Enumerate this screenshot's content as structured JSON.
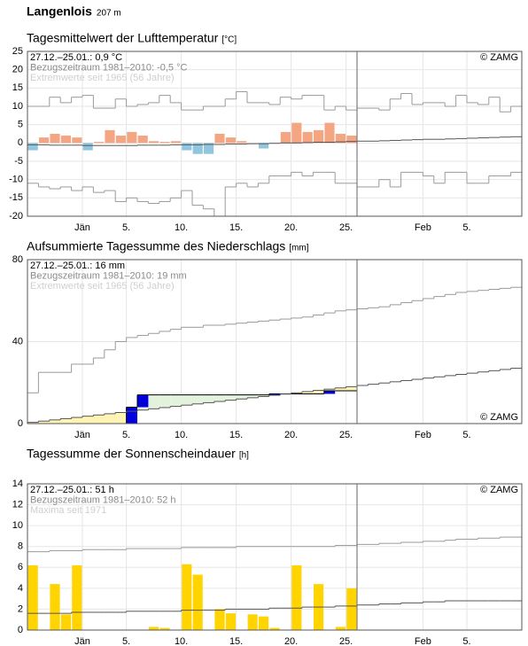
{
  "header": {
    "title": "Langenlois",
    "subtitle": "207 m"
  },
  "chart_data": [
    {
      "type": "bar",
      "title": "Tagesmittelwert der Lufttemperatur",
      "unit": "[°C]",
      "credit": "© ZAMG",
      "credit_corner": "top right",
      "grid": true,
      "categories": [
        null,
        null,
        null,
        null,
        null,
        "Jän",
        null,
        null,
        null,
        "5.",
        null,
        null,
        null,
        null,
        "10.",
        null,
        null,
        null,
        null,
        "15.",
        null,
        null,
        null,
        null,
        "20.",
        null,
        null,
        null,
        null,
        "25.",
        null,
        null,
        null,
        null,
        null,
        null,
        "Feb",
        null,
        null,
        null,
        "5.",
        null,
        null,
        null,
        null
      ],
      "ylim": [
        -20,
        25
      ],
      "yticks": [
        -20,
        -15,
        -10,
        -5,
        0,
        5,
        10,
        15,
        20,
        25
      ],
      "series": [
        {
          "name": "27.12.–25.01.: 0,9 °C",
          "style": "bar",
          "color": "#f4a582",
          "negative_color": "#92c5de",
          "values": [
            -2,
            1.5,
            2.5,
            2,
            1.5,
            -2,
            0.3,
            3.5,
            2,
            3,
            2,
            0.5,
            0.3,
            0.5,
            -2,
            -3,
            -3,
            2.5,
            1.5,
            0.5,
            0,
            -1.5,
            0,
            3,
            5.5,
            3,
            3.5,
            5.5,
            2.5,
            2,
            null,
            null,
            null,
            null,
            null,
            null,
            null,
            null,
            null,
            null,
            null,
            null,
            null,
            null,
            null
          ]
        },
        {
          "name": "Bezugszeitraum 1981–2010: -0,5 °C",
          "style": "step",
          "color": "#555555",
          "values": [
            -0.5,
            -0.5,
            -0.6,
            -0.6,
            -0.6,
            -0.7,
            -0.7,
            -0.7,
            -0.7,
            -0.7,
            -0.6,
            -0.6,
            -0.6,
            -0.5,
            -0.5,
            -0.5,
            -0.4,
            -0.4,
            -0.3,
            -0.3,
            -0.2,
            -0.2,
            -0.1,
            0,
            0,
            0.1,
            0.2,
            0.2,
            0.3,
            0.4,
            0.5,
            0.5,
            0.6,
            0.7,
            0.8,
            0.9,
            1,
            1,
            1.1,
            1.2,
            1.3,
            1.4,
            1.5,
            1.6,
            1.7
          ]
        },
        {
          "name": "Extremwerte seit 1965 (56 Jahre)",
          "style": "step",
          "color": "#9a9a9a",
          "values": [
            10,
            10,
            12.5,
            11,
            12.5,
            13,
            9.5,
            9.5,
            12,
            10,
            10.5,
            11,
            13,
            11,
            9,
            9,
            10,
            10,
            12,
            14,
            11,
            11,
            10.5,
            12.5,
            12,
            13,
            13,
            9,
            10,
            9,
            9.5,
            9.5,
            9,
            12,
            13.5,
            10.5,
            11,
            11,
            10,
            13,
            11,
            10.5,
            12.5,
            8.5,
            10
          ]
        },
        {
          "style": "step",
          "color": "#9a9a9a",
          "values": [
            -11,
            -12,
            -12.5,
            -12,
            -13,
            -12,
            -13.5,
            -13,
            -16,
            -15,
            -16,
            -16.5,
            -16,
            -15,
            -13,
            -17,
            -18,
            -20,
            -12,
            -11,
            -12,
            -11,
            -9,
            -9,
            -8,
            -9,
            -8,
            -8,
            -11,
            -11,
            -12,
            -12,
            -10,
            -12,
            -8,
            -8,
            -9,
            -11,
            -8,
            -8,
            -11,
            -11,
            -9,
            -9,
            -8
          ]
        }
      ]
    },
    {
      "type": "line",
      "title": "Aufsummierte Tagessumme des Niederschlags",
      "unit": "[mm]",
      "credit": "© ZAMG",
      "credit_corner": "bottom right",
      "grid": true,
      "fill_colors": {
        "below": "#fff4b3",
        "above": "#e2f2dc"
      },
      "increment_color": "#0000dd",
      "categories": [
        null,
        null,
        null,
        null,
        null,
        "Jän",
        null,
        null,
        null,
        "5.",
        null,
        null,
        null,
        null,
        "10.",
        null,
        null,
        null,
        null,
        "15.",
        null,
        null,
        null,
        null,
        "20.",
        null,
        null,
        null,
        null,
        "25.",
        null,
        null,
        null,
        null,
        null,
        null,
        "Feb",
        null,
        null,
        null,
        "5.",
        null,
        null,
        null,
        null
      ],
      "ylim": [
        0,
        80
      ],
      "yticks": [
        0,
        40,
        80
      ],
      "series": [
        {
          "name": "27.12.–25.01.: 16 mm",
          "style": "step",
          "color": "#000000",
          "values": [
            0,
            0,
            0,
            0,
            0,
            0,
            0,
            0,
            0,
            8,
            14,
            14,
            14,
            14,
            14,
            14,
            14,
            14,
            14,
            14,
            14,
            14,
            14.5,
            14.5,
            14.5,
            14.5,
            14.5,
            16,
            16,
            16,
            null,
            null,
            null,
            null,
            null,
            null,
            null,
            null,
            null,
            null,
            null,
            null,
            null,
            null,
            null
          ]
        },
        {
          "name": "Bezugszeitraum 1981–2010: 19 mm",
          "style": "step",
          "color": "#555555",
          "values": [
            0.6,
            1.2,
            1.8,
            2.4,
            3,
            3.6,
            4.2,
            4.8,
            5.4,
            6,
            6.6,
            7.2,
            7.8,
            8.4,
            9,
            9.6,
            10.2,
            10.8,
            11.4,
            12,
            12.6,
            13.2,
            13.8,
            14.4,
            15,
            15.6,
            16.2,
            16.8,
            17.4,
            18,
            18.6,
            19.2,
            19.8,
            20.4,
            21,
            21.6,
            22.2,
            22.8,
            23.4,
            24,
            24.6,
            25.2,
            25.8,
            26.4,
            27
          ]
        },
        {
          "name": "Extremwerte seit 1965 (56 Jahre)",
          "style": "step",
          "color": "#9a9a9a",
          "values": [
            15,
            25,
            25,
            25,
            29,
            29,
            32,
            36,
            40,
            42,
            43,
            44,
            45,
            46,
            47,
            47,
            48,
            48,
            48.5,
            49,
            49.5,
            50,
            50.5,
            51,
            51.5,
            52,
            53,
            54,
            55,
            55.5,
            56,
            56.5,
            57,
            58,
            59,
            60,
            61,
            62,
            63,
            64,
            64.5,
            65,
            65.5,
            66,
            66.5
          ]
        }
      ]
    },
    {
      "type": "bar",
      "title": "Tagessumme der Sonnenscheindauer",
      "unit": "[h]",
      "credit": "© ZAMG",
      "credit_corner": "top right",
      "grid": true,
      "categories": [
        null,
        null,
        null,
        null,
        null,
        "Jän",
        null,
        null,
        null,
        "5.",
        null,
        null,
        null,
        null,
        "10.",
        null,
        null,
        null,
        null,
        "15.",
        null,
        null,
        null,
        null,
        "20.",
        null,
        null,
        null,
        null,
        "25.",
        null,
        null,
        null,
        null,
        null,
        null,
        "Feb",
        null,
        null,
        null,
        "5.",
        null,
        null,
        null,
        null
      ],
      "ylim": [
        0,
        14
      ],
      "yticks": [
        0,
        2,
        4,
        6,
        8,
        10,
        12,
        14
      ],
      "series": [
        {
          "name": "27.12.–25.01.: 51 h",
          "style": "bar",
          "color": "#ffd400",
          "values": [
            6.2,
            0,
            4.4,
            1.5,
            6.2,
            0,
            0,
            0,
            0,
            0,
            0,
            0.3,
            0.2,
            0,
            6.3,
            5.3,
            0,
            2,
            1.6,
            0,
            1.5,
            1.3,
            0.2,
            0,
            6.2,
            0,
            4.4,
            0,
            0.3,
            4,
            null,
            null,
            null,
            null,
            null,
            null,
            null,
            null,
            null,
            null,
            null,
            null,
            null,
            null,
            null
          ]
        },
        {
          "name": "Bezugszeitraum 1981–2010: 52 h",
          "style": "step",
          "color": "#555555",
          "values": [
            1.6,
            1.6,
            1.6,
            1.6,
            1.7,
            1.7,
            1.7,
            1.7,
            1.7,
            1.8,
            1.8,
            1.8,
            1.8,
            1.8,
            1.9,
            1.9,
            1.9,
            1.9,
            2,
            2,
            2,
            2,
            2.1,
            2.1,
            2.1,
            2.2,
            2.2,
            2.2,
            2.3,
            2.3,
            2.4,
            2.4,
            2.5,
            2.5,
            2.6,
            2.6,
            2.7,
            2.7,
            2.8,
            2.8,
            2.8,
            2.8,
            2.8,
            2.8,
            2.8
          ]
        },
        {
          "name": "Maxima seit 1971",
          "style": "step",
          "color": "#9a9a9a",
          "values": [
            7.5,
            7.5,
            7.6,
            7.6,
            7.6,
            7.7,
            7.7,
            7.7,
            7.7,
            7.8,
            7.8,
            7.8,
            7.8,
            7.8,
            7.9,
            7.9,
            7.9,
            7.9,
            7.9,
            8,
            8,
            8,
            8,
            8,
            8,
            8,
            8,
            8,
            8.1,
            8.1,
            8.2,
            8.2,
            8.3,
            8.3,
            8.4,
            8.4,
            8.5,
            8.5,
            8.6,
            8.7,
            8.7,
            8.8,
            8.8,
            8.9,
            8.9
          ]
        }
      ]
    }
  ]
}
